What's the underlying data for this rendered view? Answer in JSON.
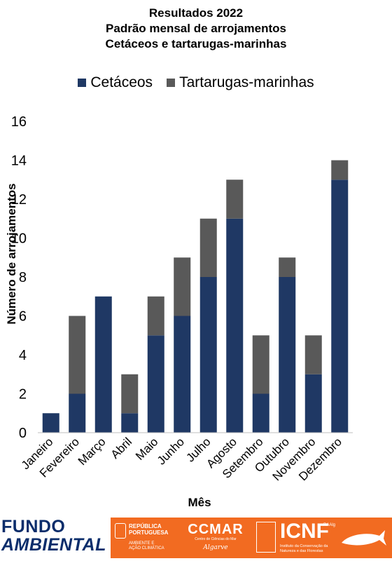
{
  "chart_data": {
    "type": "bar",
    "stacked": true,
    "title_lines": [
      "Resultados 2022",
      "Padrão mensal de arrojamentos",
      "Cetáceos e tartarugas-marinhas"
    ],
    "xlabel": "Mês",
    "ylabel": "Número de arrojamentos",
    "ylim": [
      0,
      16
    ],
    "yticks": [
      0,
      2,
      4,
      6,
      8,
      10,
      12,
      14,
      16
    ],
    "grid": false,
    "legend_position": "top",
    "categories": [
      "Janeiro",
      "Fevereiro",
      "Março",
      "Abril",
      "Maio",
      "Junho",
      "Julho",
      "Agosto",
      "Setembro",
      "Outubro",
      "Novembro",
      "Dezembro"
    ],
    "series": [
      {
        "name": "Cetáceos",
        "color": "#1f3864",
        "values": [
          1,
          2,
          7,
          1,
          5,
          6,
          8,
          11,
          2,
          8,
          3,
          13
        ]
      },
      {
        "name": "Tartarugas-marinhas",
        "color": "#595959",
        "values": [
          0,
          4,
          0,
          2,
          2,
          3,
          3,
          2,
          3,
          1,
          2,
          1
        ]
      }
    ]
  },
  "logos": {
    "fundo_line1": "FUNDO",
    "fundo_line2": "AMBIENTAL",
    "republica_line1": "REPÚBLICA",
    "republica_line2": "PORTUGUESA",
    "republica_sub1": "AMBIENTE E",
    "republica_sub2": "AÇÃO CLIMÁTICA",
    "ccmar_name": "CCMAR",
    "ccmar_sub": "Centro de Ciências do Mar",
    "ccmar_place": "Algarve",
    "icnf_name": "ICNF",
    "icnf_sub": "Instituto da Conservação da Natureza e das Florestas",
    "raa": "RAAlg",
    "orange": "#f26b21",
    "navy": "#0b2d6b"
  }
}
